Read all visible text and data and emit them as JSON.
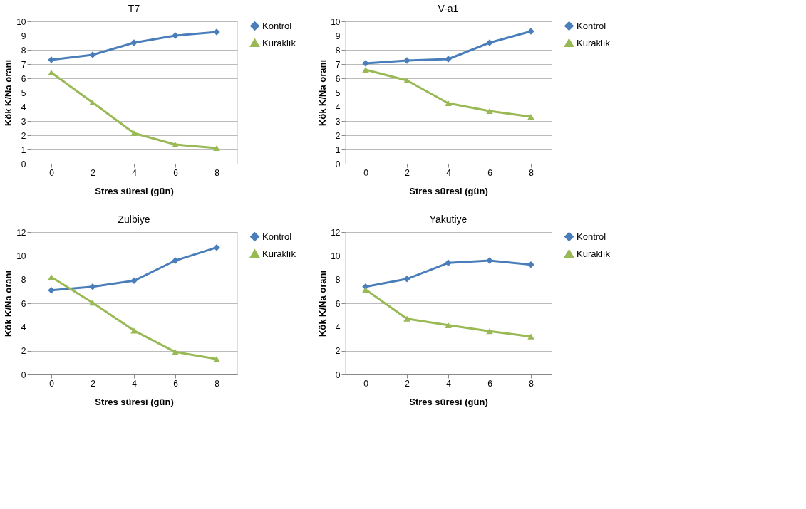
{
  "chart_data": [
    {
      "type": "line",
      "title": "T7",
      "xlabel": "Stres süresi (gün)",
      "ylabel": "Kök  K/Na oranı",
      "categories": [
        "0",
        "2",
        "4",
        "6",
        "8"
      ],
      "ylim": [
        0,
        10
      ],
      "yticks": [
        0,
        1,
        2,
        3,
        4,
        5,
        6,
        7,
        8,
        9,
        10
      ],
      "grid": "y",
      "legend": "right",
      "series": [
        {
          "name": "Kontrol",
          "color": "#4a7ebb",
          "marker": "diamond",
          "values": [
            7.3,
            7.65,
            8.5,
            9.0,
            9.25
          ]
        },
        {
          "name": "Kuraklık",
          "color": "#98b954",
          "marker": "triangle",
          "values": [
            6.4,
            4.3,
            2.15,
            1.35,
            1.1
          ]
        }
      ]
    },
    {
      "type": "line",
      "title": "V-a1",
      "xlabel": "Stres süresi (gün)",
      "ylabel": "Kök  K/Na oranı",
      "categories": [
        "0",
        "2",
        "4",
        "6",
        "8"
      ],
      "ylim": [
        0,
        10
      ],
      "yticks": [
        0,
        1,
        2,
        3,
        4,
        5,
        6,
        7,
        8,
        9,
        10
      ],
      "grid": "y",
      "legend": "right",
      "series": [
        {
          "name": "Kontrol",
          "color": "#4a7ebb",
          "marker": "diamond",
          "values": [
            7.05,
            7.25,
            7.35,
            8.5,
            9.3
          ]
        },
        {
          "name": "Kuraklık",
          "color": "#98b954",
          "marker": "triangle",
          "values": [
            6.6,
            5.85,
            4.25,
            3.7,
            3.3
          ]
        }
      ]
    },
    {
      "type": "line",
      "title": "Zulbiye",
      "xlabel": "Stres süresi (gün)",
      "ylabel": "Kök  K/Na oranı",
      "categories": [
        "0",
        "2",
        "4",
        "6",
        "8"
      ],
      "ylim": [
        0,
        12
      ],
      "yticks": [
        0,
        2,
        4,
        6,
        8,
        10,
        12
      ],
      "grid": "y",
      "legend": "right",
      "series": [
        {
          "name": "Kontrol",
          "color": "#4a7ebb",
          "marker": "diamond",
          "values": [
            7.1,
            7.4,
            7.9,
            9.6,
            10.7
          ]
        },
        {
          "name": "Kuraklık",
          "color": "#98b954",
          "marker": "triangle",
          "values": [
            8.2,
            6.05,
            3.7,
            1.9,
            1.3
          ]
        }
      ]
    },
    {
      "type": "line",
      "title": "Yakutiye",
      "xlabel": "Stres süresi (gün)",
      "ylabel": "Kök  K/Na oranı",
      "categories": [
        "0",
        "2",
        "4",
        "6",
        "8"
      ],
      "ylim": [
        0,
        12
      ],
      "yticks": [
        0,
        2,
        4,
        6,
        8,
        10,
        12
      ],
      "grid": "y",
      "legend": "right",
      "series": [
        {
          "name": "Kontrol",
          "color": "#4a7ebb",
          "marker": "diamond",
          "values": [
            7.4,
            8.05,
            9.4,
            9.6,
            9.25
          ]
        },
        {
          "name": "Kuraklık",
          "color": "#98b954",
          "marker": "triangle",
          "values": [
            7.15,
            4.7,
            4.15,
            3.65,
            3.2
          ]
        }
      ]
    }
  ]
}
